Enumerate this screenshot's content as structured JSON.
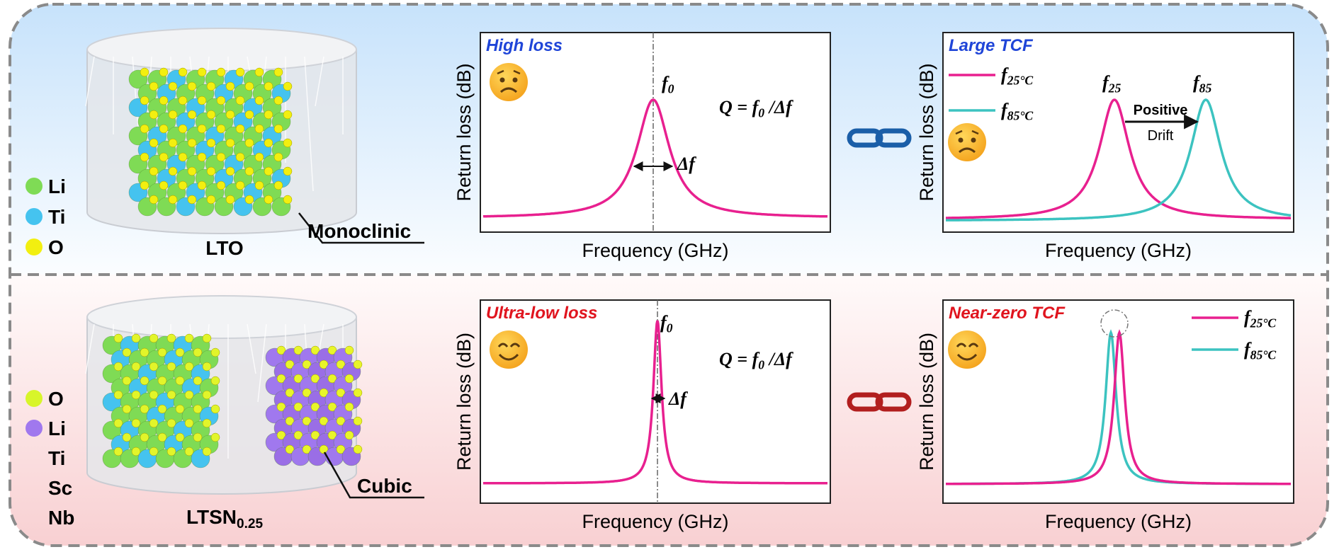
{
  "top_row": {
    "legend": [
      "Li",
      "Ti",
      "O"
    ],
    "material": "LTO",
    "structure": "Monoclinic",
    "loss_chart": {
      "tag": "High loss",
      "y_label": "Return loss (dB)",
      "x_label": "Frequency (GHz)",
      "peak_label": {
        "main": "f",
        "sub": "0"
      },
      "width_label": "Δf",
      "q_formula": {
        "main": "Q = f",
        "sub": "0",
        "tail": " /Δf"
      }
    },
    "tcf_chart": {
      "tag": "Large TCF",
      "y_label": "Return loss (dB)",
      "x_label": "Frequency (GHz)",
      "legend": [
        {
          "main": "f",
          "sub": "25°C"
        },
        {
          "main": "f",
          "sub": "85°C"
        }
      ],
      "peak_labels": [
        {
          "main": "f",
          "sub": "25"
        },
        {
          "main": "f",
          "sub": "85"
        }
      ],
      "drift_label": [
        "Positive",
        "Drift"
      ]
    }
  },
  "bottom_row": {
    "legend": [
      "O",
      "Li",
      "Ti",
      "Sc",
      "Nb"
    ],
    "material": {
      "main": "LTSN",
      "sub": "0.25"
    },
    "structure": "Cubic",
    "loss_chart": {
      "tag": "Ultra-low loss",
      "y_label": "Return loss (dB)",
      "x_label": "Frequency (GHz)",
      "peak_label": {
        "main": "f",
        "sub": "0"
      },
      "width_label": "Δf",
      "q_formula": {
        "main": "Q = f",
        "sub": "0",
        "tail": " /Δf"
      }
    },
    "tcf_chart": {
      "tag": "Near-zero TCF",
      "y_label": "Return loss (dB)",
      "x_label": "Frequency (GHz)",
      "legend": [
        {
          "main": "f",
          "sub": "25°C"
        },
        {
          "main": "f",
          "sub": "85°C"
        }
      ]
    }
  }
}
